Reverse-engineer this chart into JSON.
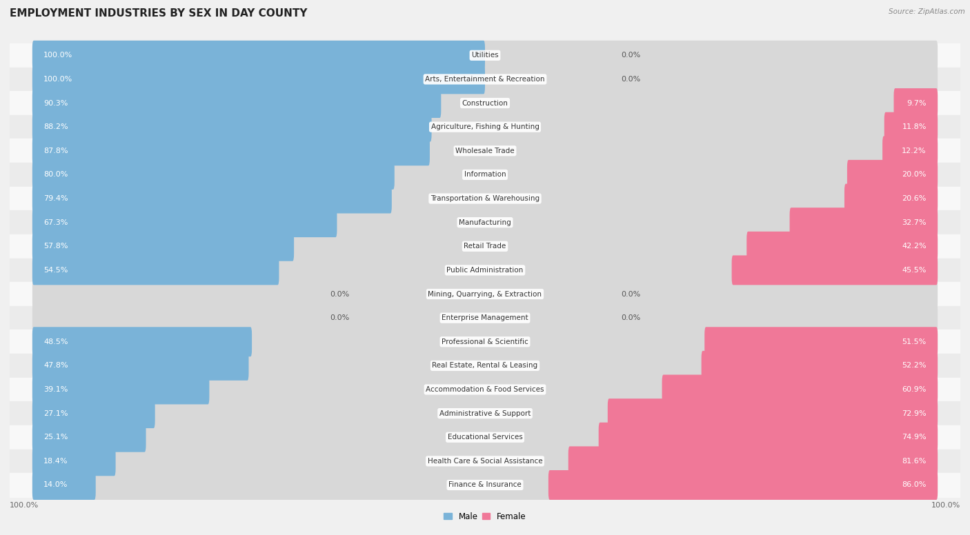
{
  "title": "EMPLOYMENT INDUSTRIES BY SEX IN DAY COUNTY",
  "source": "Source: ZipAtlas.com",
  "industries": [
    {
      "name": "Utilities",
      "male": 100.0,
      "female": 0.0
    },
    {
      "name": "Arts, Entertainment & Recreation",
      "male": 100.0,
      "female": 0.0
    },
    {
      "name": "Construction",
      "male": 90.3,
      "female": 9.7
    },
    {
      "name": "Agriculture, Fishing & Hunting",
      "male": 88.2,
      "female": 11.8
    },
    {
      "name": "Wholesale Trade",
      "male": 87.8,
      "female": 12.2
    },
    {
      "name": "Information",
      "male": 80.0,
      "female": 20.0
    },
    {
      "name": "Transportation & Warehousing",
      "male": 79.4,
      "female": 20.6
    },
    {
      "name": "Manufacturing",
      "male": 67.3,
      "female": 32.7
    },
    {
      "name": "Retail Trade",
      "male": 57.8,
      "female": 42.2
    },
    {
      "name": "Public Administration",
      "male": 54.5,
      "female": 45.5
    },
    {
      "name": "Mining, Quarrying, & Extraction",
      "male": 0.0,
      "female": 0.0
    },
    {
      "name": "Enterprise Management",
      "male": 0.0,
      "female": 0.0
    },
    {
      "name": "Professional & Scientific",
      "male": 48.5,
      "female": 51.5
    },
    {
      "name": "Real Estate, Rental & Leasing",
      "male": 47.8,
      "female": 52.2
    },
    {
      "name": "Accommodation & Food Services",
      "male": 39.1,
      "female": 60.9
    },
    {
      "name": "Administrative & Support",
      "male": 27.1,
      "female": 72.9
    },
    {
      "name": "Educational Services",
      "male": 25.1,
      "female": 74.9
    },
    {
      "name": "Health Care & Social Assistance",
      "male": 18.4,
      "female": 81.6
    },
    {
      "name": "Finance & Insurance",
      "male": 14.0,
      "female": 86.0
    }
  ],
  "male_color": "#7ab3d8",
  "female_color": "#f07898",
  "bg_color": "#f0f0f0",
  "row_bg_light": "#f8f8f8",
  "row_bg_dark": "#ebebeb",
  "bar_bg_color": "#d8d8d8",
  "title_fontsize": 11,
  "label_fontsize": 8.0,
  "name_fontsize": 7.5,
  "bar_height": 0.62,
  "total_width": 200.0,
  "xlim_left": -105,
  "xlim_right": 105
}
